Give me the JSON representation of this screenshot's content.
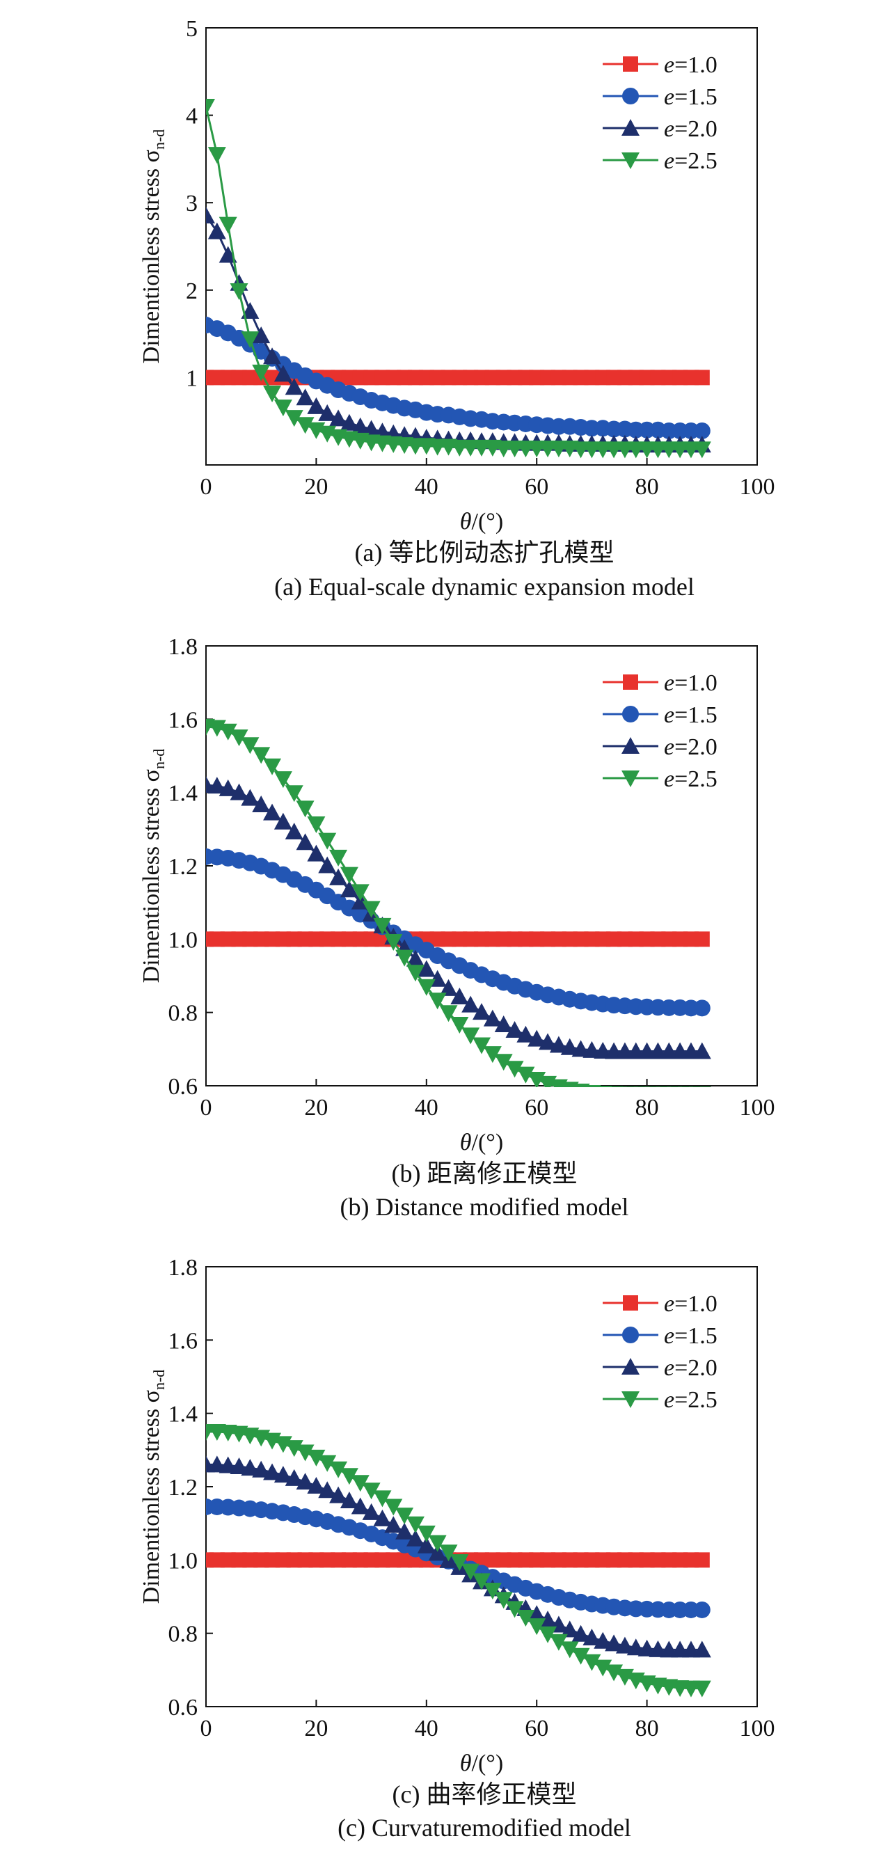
{
  "colors": {
    "e10": "#e8322d",
    "e15": "#2356b4",
    "e20": "#1e2f6b",
    "e25": "#2a9a45"
  },
  "legend": [
    {
      "symbol": "e",
      "text": "=1.0",
      "marker": "square",
      "color": "#e8322d"
    },
    {
      "symbol": "e",
      "text": "=1.5",
      "marker": "circle",
      "color": "#2356b4"
    },
    {
      "symbol": "e",
      "text": "=2.0",
      "marker": "triangle-up",
      "color": "#1e2f6b"
    },
    {
      "symbol": "e",
      "text": "=2.5",
      "marker": "triangle-down",
      "color": "#2a9a45"
    }
  ],
  "xlabel_symbol": "θ",
  "xlabel_unit": "/(°)",
  "ylabel_main": "Dimentionless stress σ",
  "ylabel_sub": "n-d",
  "chart_data": [
    {
      "type": "line",
      "caption_cn": "(a) 等比例动态扩孔模型",
      "caption_en": "(a) Equal-scale dynamic expansion model",
      "xlim": [
        0,
        100
      ],
      "ylim": [
        0,
        5
      ],
      "xticks": [
        0,
        20,
        40,
        60,
        80,
        100
      ],
      "yticks": [
        1,
        2,
        3,
        4,
        5
      ],
      "x": [
        0,
        2,
        4,
        6,
        8,
        10,
        12,
        14,
        16,
        18,
        20,
        22,
        24,
        26,
        28,
        30,
        32,
        34,
        36,
        38,
        40,
        42,
        44,
        46,
        48,
        50,
        52,
        54,
        56,
        58,
        60,
        62,
        64,
        66,
        68,
        70,
        72,
        74,
        76,
        78,
        80,
        82,
        84,
        86,
        88,
        90
      ],
      "grid": false,
      "legend_position": "top-right",
      "series": [
        {
          "name": "e=1.0",
          "values": [
            1.0,
            1.0,
            1.0,
            1.0,
            1.0,
            1.0,
            1.0,
            1.0,
            1.0,
            1.0,
            1.0,
            1.0,
            1.0,
            1.0,
            1.0,
            1.0,
            1.0,
            1.0,
            1.0,
            1.0,
            1.0,
            1.0,
            1.0,
            1.0,
            1.0,
            1.0,
            1.0,
            1.0,
            1.0,
            1.0,
            1.0,
            1.0,
            1.0,
            1.0,
            1.0,
            1.0,
            1.0,
            1.0,
            1.0,
            1.0,
            1.0,
            1.0,
            1.0,
            1.0,
            1.0,
            1.0
          ]
        },
        {
          "name": "e=1.5",
          "values": [
            1.6,
            1.56,
            1.51,
            1.45,
            1.38,
            1.3,
            1.22,
            1.15,
            1.08,
            1.02,
            0.96,
            0.91,
            0.86,
            0.82,
            0.78,
            0.74,
            0.71,
            0.68,
            0.65,
            0.63,
            0.6,
            0.58,
            0.57,
            0.55,
            0.53,
            0.52,
            0.5,
            0.49,
            0.48,
            0.47,
            0.46,
            0.45,
            0.44,
            0.44,
            0.43,
            0.42,
            0.42,
            0.41,
            0.41,
            0.4,
            0.4,
            0.4,
            0.39,
            0.39,
            0.39,
            0.39
          ]
        },
        {
          "name": "e=2.0",
          "values": [
            2.85,
            2.67,
            2.4,
            2.08,
            1.76,
            1.48,
            1.24,
            1.04,
            0.89,
            0.77,
            0.67,
            0.59,
            0.53,
            0.48,
            0.44,
            0.41,
            0.38,
            0.36,
            0.34,
            0.33,
            0.31,
            0.3,
            0.29,
            0.28,
            0.28,
            0.27,
            0.27,
            0.26,
            0.26,
            0.25,
            0.25,
            0.25,
            0.25,
            0.24,
            0.24,
            0.24,
            0.24,
            0.24,
            0.24,
            0.23,
            0.23,
            0.23,
            0.23,
            0.23,
            0.23,
            0.23
          ]
        },
        {
          "name": "e=2.5",
          "values": [
            4.1,
            3.55,
            2.75,
            1.99,
            1.44,
            1.06,
            0.82,
            0.66,
            0.54,
            0.46,
            0.4,
            0.36,
            0.32,
            0.3,
            0.28,
            0.26,
            0.25,
            0.24,
            0.23,
            0.22,
            0.22,
            0.21,
            0.21,
            0.2,
            0.2,
            0.2,
            0.2,
            0.19,
            0.19,
            0.19,
            0.19,
            0.19,
            0.19,
            0.19,
            0.18,
            0.18,
            0.18,
            0.18,
            0.18,
            0.18,
            0.18,
            0.18,
            0.18,
            0.18,
            0.18,
            0.18
          ]
        }
      ]
    },
    {
      "type": "line",
      "caption_cn": "(b) 距离修正模型",
      "caption_en": "(b) Distance modified model",
      "xlim": [
        0,
        100
      ],
      "ylim": [
        0.6,
        1.8
      ],
      "xticks": [
        0,
        20,
        40,
        60,
        80,
        100
      ],
      "yticks": [
        0.6,
        0.8,
        1.0,
        1.2,
        1.4,
        1.6,
        1.8
      ],
      "ytick_labels": [
        "0.6",
        "0.8",
        "1.0",
        "1.2",
        "1.4",
        "1.6",
        "1.8"
      ],
      "x": [
        0,
        2,
        4,
        6,
        8,
        10,
        12,
        14,
        16,
        18,
        20,
        22,
        24,
        26,
        28,
        30,
        32,
        34,
        36,
        38,
        40,
        42,
        44,
        46,
        48,
        50,
        52,
        54,
        56,
        58,
        60,
        62,
        64,
        66,
        68,
        70,
        72,
        74,
        76,
        78,
        80,
        82,
        84,
        86,
        88,
        90
      ],
      "grid": false,
      "legend_position": "top-right",
      "series": [
        {
          "name": "e=1.0",
          "values": [
            1.0,
            1.0,
            1.0,
            1.0,
            1.0,
            1.0,
            1.0,
            1.0,
            1.0,
            1.0,
            1.0,
            1.0,
            1.0,
            1.0,
            1.0,
            1.0,
            1.0,
            1.0,
            1.0,
            1.0,
            1.0,
            1.0,
            1.0,
            1.0,
            1.0,
            1.0,
            1.0,
            1.0,
            1.0,
            1.0,
            1.0,
            1.0,
            1.0,
            1.0,
            1.0,
            1.0,
            1.0,
            1.0,
            1.0,
            1.0,
            1.0,
            1.0,
            1.0,
            1.0,
            1.0,
            1.0
          ]
        },
        {
          "name": "e=1.5",
          "values": [
            1.225,
            1.224,
            1.221,
            1.215,
            1.208,
            1.199,
            1.188,
            1.176,
            1.163,
            1.149,
            1.134,
            1.118,
            1.101,
            1.085,
            1.068,
            1.051,
            1.034,
            1.017,
            1.001,
            0.985,
            0.97,
            0.955,
            0.941,
            0.928,
            0.915,
            0.903,
            0.892,
            0.882,
            0.872,
            0.863,
            0.855,
            0.848,
            0.842,
            0.836,
            0.831,
            0.827,
            0.823,
            0.82,
            0.818,
            0.816,
            0.815,
            0.814,
            0.813,
            0.813,
            0.812,
            0.812
          ]
        },
        {
          "name": "e=2.0",
          "values": [
            1.42,
            1.418,
            1.411,
            1.4,
            1.385,
            1.367,
            1.345,
            1.32,
            1.293,
            1.264,
            1.233,
            1.201,
            1.168,
            1.135,
            1.102,
            1.069,
            1.037,
            1.006,
            0.975,
            0.946,
            0.918,
            0.891,
            0.866,
            0.843,
            0.821,
            0.801,
            0.783,
            0.767,
            0.752,
            0.739,
            0.728,
            0.719,
            0.711,
            0.705,
            0.7,
            0.697,
            0.695,
            0.694,
            0.694,
            0.694,
            0.694,
            0.694,
            0.694,
            0.694,
            0.694,
            0.694
          ]
        },
        {
          "name": "e=2.5",
          "values": [
            1.58,
            1.577,
            1.567,
            1.551,
            1.53,
            1.503,
            1.472,
            1.437,
            1.399,
            1.357,
            1.314,
            1.269,
            1.223,
            1.176,
            1.129,
            1.083,
            1.037,
            0.993,
            0.95,
            0.909,
            0.87,
            0.833,
            0.799,
            0.767,
            0.738,
            0.711,
            0.687,
            0.666,
            0.647,
            0.631,
            0.617,
            0.606,
            0.597,
            0.59,
            0.585,
            0.581,
            0.579,
            0.578,
            0.577,
            0.577,
            0.577,
            0.577,
            0.577,
            0.577,
            0.577,
            0.577
          ]
        }
      ]
    },
    {
      "type": "line",
      "caption_cn": "(c) 曲率修正模型",
      "caption_en": "(c) Curvaturemodified model",
      "xlim": [
        0,
        100
      ],
      "ylim": [
        0.6,
        1.8
      ],
      "xticks": [
        0,
        20,
        40,
        60,
        80,
        100
      ],
      "yticks": [
        0.6,
        0.8,
        1.0,
        1.2,
        1.4,
        1.6,
        1.8
      ],
      "ytick_labels": [
        "0.6",
        "0.8",
        "1.0",
        "1.2",
        "1.4",
        "1.6",
        "1.8"
      ],
      "x": [
        0,
        2,
        4,
        6,
        8,
        10,
        12,
        14,
        16,
        18,
        20,
        22,
        24,
        26,
        28,
        30,
        32,
        34,
        36,
        38,
        40,
        42,
        44,
        46,
        48,
        50,
        52,
        54,
        56,
        58,
        60,
        62,
        64,
        66,
        68,
        70,
        72,
        74,
        76,
        78,
        80,
        82,
        84,
        86,
        88,
        90
      ],
      "grid": false,
      "legend_position": "top-right",
      "series": [
        {
          "name": "e=1.0",
          "values": [
            1.0,
            1.0,
            1.0,
            1.0,
            1.0,
            1.0,
            1.0,
            1.0,
            1.0,
            1.0,
            1.0,
            1.0,
            1.0,
            1.0,
            1.0,
            1.0,
            1.0,
            1.0,
            1.0,
            1.0,
            1.0,
            1.0,
            1.0,
            1.0,
            1.0,
            1.0,
            1.0,
            1.0,
            1.0,
            1.0,
            1.0,
            1.0,
            1.0,
            1.0,
            1.0,
            1.0,
            1.0,
            1.0,
            1.0,
            1.0,
            1.0,
            1.0,
            1.0,
            1.0,
            1.0,
            1.0
          ]
        },
        {
          "name": "e=1.5",
          "values": [
            1.145,
            1.145,
            1.144,
            1.142,
            1.14,
            1.137,
            1.133,
            1.129,
            1.124,
            1.118,
            1.112,
            1.105,
            1.097,
            1.089,
            1.08,
            1.071,
            1.061,
            1.051,
            1.041,
            1.03,
            1.019,
            1.008,
            0.997,
            0.986,
            0.975,
            0.964,
            0.953,
            0.943,
            0.933,
            0.923,
            0.914,
            0.906,
            0.898,
            0.891,
            0.885,
            0.88,
            0.876,
            0.872,
            0.869,
            0.867,
            0.866,
            0.865,
            0.864,
            0.864,
            0.864,
            0.864
          ]
        },
        {
          "name": "e=2.0",
          "values": [
            1.26,
            1.26,
            1.258,
            1.255,
            1.251,
            1.246,
            1.239,
            1.232,
            1.223,
            1.213,
            1.202,
            1.19,
            1.176,
            1.162,
            1.146,
            1.13,
            1.113,
            1.095,
            1.077,
            1.058,
            1.039,
            1.019,
            0.999,
            0.98,
            0.96,
            0.941,
            0.922,
            0.903,
            0.885,
            0.868,
            0.852,
            0.837,
            0.823,
            0.81,
            0.798,
            0.788,
            0.779,
            0.772,
            0.766,
            0.761,
            0.758,
            0.756,
            0.755,
            0.755,
            0.755,
            0.755
          ]
        },
        {
          "name": "e=2.5",
          "values": [
            1.35,
            1.35,
            1.348,
            1.345,
            1.34,
            1.334,
            1.326,
            1.317,
            1.306,
            1.294,
            1.28,
            1.265,
            1.248,
            1.23,
            1.211,
            1.19,
            1.169,
            1.146,
            1.122,
            1.098,
            1.073,
            1.047,
            1.021,
            0.995,
            0.969,
            0.943,
            0.917,
            0.892,
            0.867,
            0.843,
            0.82,
            0.798,
            0.777,
            0.757,
            0.739,
            0.722,
            0.707,
            0.694,
            0.682,
            0.672,
            0.664,
            0.658,
            0.654,
            0.651,
            0.65,
            0.65
          ]
        }
      ]
    }
  ]
}
